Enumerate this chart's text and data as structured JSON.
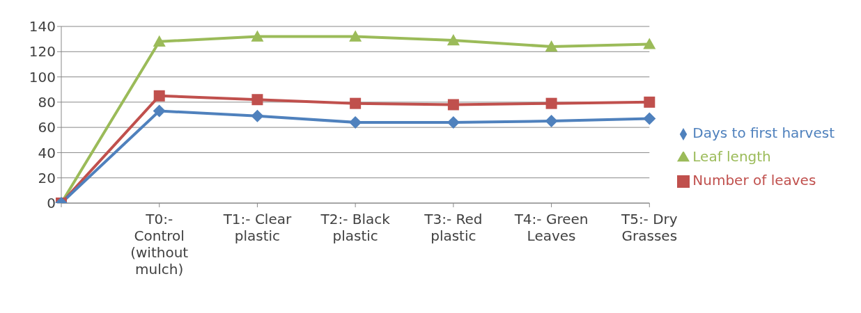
{
  "chart_data": {
    "type": "line",
    "categories": [
      null,
      "T0:- Control (without mulch)",
      "T1:- Clear plastic",
      "T2:- Black plastic",
      "T3:- Red plastic",
      "T4:- Green Leaves",
      "T5:- Dry Grasses"
    ],
    "series": [
      {
        "name": "Leaf length",
        "color": "#9bbb59",
        "marker": "triangle",
        "values": [
          0,
          128,
          132,
          132,
          129,
          124,
          126
        ]
      },
      {
        "name": "Number of leaves",
        "color": "#c0504d",
        "marker": "square",
        "values": [
          0,
          85,
          82,
          79,
          78,
          79,
          80
        ]
      },
      {
        "name": "Days to first harvest",
        "color": "#4f81bd",
        "marker": "diamond",
        "values": [
          0,
          73,
          69,
          64,
          64,
          65,
          67
        ]
      }
    ],
    "ylim": [
      0,
      140
    ],
    "yticks": [
      0,
      20,
      40,
      60,
      80,
      100,
      120,
      140
    ],
    "grid": "y",
    "legend": "right"
  }
}
